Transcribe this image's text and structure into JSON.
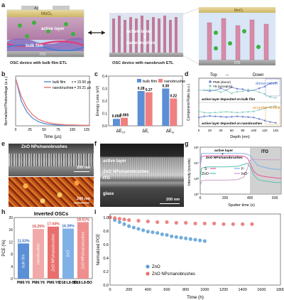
{
  "panel_labels": {
    "a": "a",
    "b": "b",
    "c": "c",
    "d": "d",
    "e": "e",
    "f": "f",
    "g": "g",
    "h": "h",
    "i": "i"
  },
  "panel_a": {
    "left_caption": "OSC device with bulk film ETL",
    "mid_caption": "OSC device with nanobrush ETL",
    "top_layer": "MoO₃",
    "electrode": "Ag",
    "active_layer": "active layer",
    "bulk_film": "bulk film",
    "ito": "ITO",
    "mid_label_1": "active layer",
    "mid_label_2": "+",
    "mid_label_3": "nanobrushes",
    "carrier_e": "e",
    "carrier_h": "h"
  },
  "panel_b": {
    "ylabel": "Normalized Photovoltage (a.u.)",
    "xlabel": "Time (μs)",
    "xticks": [
      "0",
      "25",
      "50",
      "75",
      "100",
      "125"
    ],
    "legend": [
      {
        "name": "bulk film",
        "tau": "τ = 15.50 μs",
        "color": "#5b8fd6"
      },
      {
        "name": "nanobrushes",
        "tau": "τ = 20.21 μs",
        "color": "#e87b74"
      }
    ]
  },
  "panel_c": {
    "ylabel": "Energy Loss (eV)",
    "yticks": [
      "0.0",
      "0.1",
      "0.2",
      "0.3",
      "0.4"
    ],
    "legend": [
      "bulk film",
      "nanobrushes"
    ],
    "categories": [
      "ΔE_CT",
      "ΔE_r",
      "ΔE_nr"
    ],
    "cat_main": [
      "ΔE",
      "ΔE",
      "ΔE"
    ],
    "cat_sub": [
      "CT",
      "r",
      "nr"
    ]
  },
  "panel_d": {
    "ylabel": "Component Ratio (a.u.)",
    "xlabel": "Depth (nm)",
    "xticks": [
      "0",
      "20",
      "40",
      "60",
      "80",
      "100",
      "120",
      "140"
    ],
    "top_label": "Top",
    "down_label": "Down",
    "arrow_text": "→",
    "legend": [
      "PM6 (donor)",
      "Y6 (acceptor)"
    ],
    "donor_rich": "donor-riched",
    "acceptor_rich": "acceptor-riched",
    "upper_caption": "active layer deposited on bulk film",
    "lower_caption": "active layer deposited on nanobrushes"
  },
  "panel_e": {
    "title": "ZnO NPs/nanobrushes",
    "scale_top": "200 nm",
    "scale_bottom": "200 nm"
  },
  "panel_f": {
    "active_layer": "active layer",
    "zno_layer": "ZnO NPs/nanobrushes",
    "ito": "ITO",
    "glass": "glass",
    "scale": "200 nm"
  },
  "panel_g": {
    "annotation_1": "active layer",
    "annotation_2": "+",
    "annotation_3": "ZnO NPs/nanobrushes",
    "ito": "ITO",
    "ylabel": "Intensity (counts)",
    "xlabel": "Sputter time (s)",
    "xticks": [
      "0",
      "200",
      "400",
      "600"
    ],
    "yticks": [
      "10⁰",
      "10²",
      "10⁴",
      "10⁶"
    ],
    "legend": [
      {
        "name": "S⁻",
        "color": "#e8559b"
      },
      {
        "name": "F⁻",
        "color": "#7fb0e6"
      },
      {
        "name": "ZnO⁻",
        "color": "#5bc0b0"
      },
      {
        "name": "InO⁻",
        "color": "#c8a0c8"
      }
    ]
  },
  "panel_h": {
    "title": "Inverted OSCs",
    "ylabel": "PCE (%)",
    "yticks": [
      "0",
      "4",
      "8",
      "12",
      "16",
      "20"
    ],
    "bars": [
      {
        "value_label": "11.53%",
        "inner": "bulk film",
        "category": "PM6:Y6",
        "color": "#5b8fd6"
      },
      {
        "value_label": "16.25%",
        "inner": "nanobrushes",
        "category": "PM6:Y6",
        "color": "#f2a9a9"
      },
      {
        "value_label": "17.04%",
        "inner": "ZnO NPs/nanobrushes",
        "category": "PM6:Y6",
        "color": "#e96f6f"
      },
      {
        "value_label": "16.39%",
        "inner": "ZnO",
        "category": "D18:L8-BO",
        "color": "#7fb0e6"
      },
      {
        "value_label": "18.51%",
        "inner": "ZnO NPs/nanobrushes",
        "category": "D18:L8-BO",
        "color": "#f08e8e"
      }
    ]
  },
  "panel_i": {
    "ylabel": "Normalized PCE",
    "xlabel": "Time (h)",
    "xticks": [
      "0",
      "200",
      "400",
      "600",
      "800",
      "1000",
      "1200",
      "1400",
      "1600",
      "1800"
    ],
    "yticks": [
      "0.0",
      "0.2",
      "0.4",
      "0.6",
      "0.8",
      "1.0"
    ],
    "legend": [
      {
        "name": "ZnO",
        "color": "#5b9fd6"
      },
      {
        "name": "ZnO NPs/nanobrushes",
        "color": "#e87070"
      }
    ]
  },
  "chart_data": [
    {
      "panel": "b",
      "type": "line",
      "xlabel": "Time (μs)",
      "ylabel": "Normalized Photovoltage (a.u.)",
      "xlim": [
        0,
        130
      ],
      "ylim": [
        0,
        1.05
      ],
      "series": [
        {
          "name": "bulk film",
          "tau_us": 15.5,
          "x": [
            0,
            10,
            20,
            30,
            40,
            50,
            60,
            70,
            80,
            90,
            100,
            110,
            120,
            130
          ],
          "y": [
            1.0,
            0.52,
            0.29,
            0.16,
            0.09,
            0.05,
            0.03,
            0.02,
            0.015,
            0.01,
            0.01,
            0.01,
            0.01,
            0.01
          ]
        },
        {
          "name": "nanobrushes",
          "tau_us": 20.21,
          "x": [
            0,
            10,
            20,
            30,
            40,
            50,
            60,
            70,
            80,
            90,
            100,
            110,
            120,
            130
          ],
          "y": [
            1.0,
            0.62,
            0.38,
            0.23,
            0.14,
            0.09,
            0.06,
            0.04,
            0.03,
            0.02,
            0.02,
            0.015,
            0.01,
            0.01
          ]
        }
      ]
    },
    {
      "panel": "c",
      "type": "bar",
      "categories": [
        "ΔE_CT",
        "ΔE_r",
        "ΔE_nr"
      ],
      "ylabel": "Energy Loss (eV)",
      "ylim": [
        0,
        0.4
      ],
      "series": [
        {
          "name": "bulk film",
          "values": [
            0.056,
            0.28,
            0.3
          ]
        },
        {
          "name": "nanobrushes",
          "values": [
            0.065,
            0.27,
            0.22
          ]
        }
      ],
      "labels": [
        "0.056",
        "0.065",
        "0.28",
        "0.27",
        "0.30",
        "0.22"
      ]
    },
    {
      "panel": "d",
      "type": "line",
      "xlabel": "Depth (nm)",
      "ylabel": "Component Ratio (a.u.)",
      "xlim": [
        0,
        150
      ],
      "series": [
        {
          "name": "PM6 (donor)",
          "group": "upper",
          "x": [
            0,
            10,
            20,
            30,
            40,
            50,
            60,
            70,
            80,
            90,
            100,
            110,
            120,
            130,
            140
          ],
          "y": [
            0.5,
            0.5,
            0.48,
            0.5,
            0.55,
            0.5,
            0.58,
            0.54,
            0.53,
            0.48,
            0.5,
            0.55,
            0.6,
            0.68,
            0.7
          ]
        },
        {
          "name": "Y6 (acceptor)",
          "group": "upper",
          "x": [
            0,
            10,
            20,
            30,
            40,
            50,
            60,
            70,
            80,
            90,
            100,
            110,
            120,
            130,
            140
          ],
          "y": [
            0.5,
            0.5,
            0.52,
            0.5,
            0.45,
            0.5,
            0.42,
            0.46,
            0.47,
            0.52,
            0.5,
            0.45,
            0.4,
            0.32,
            0.3
          ]
        },
        {
          "name": "PM6 (donor)",
          "group": "lower",
          "x": [
            0,
            10,
            20,
            30,
            40,
            50,
            60,
            70,
            80,
            90,
            100,
            110,
            120,
            130,
            140
          ],
          "y": [
            0.42,
            0.45,
            0.46,
            0.45,
            0.44,
            0.43,
            0.44,
            0.45,
            0.44,
            0.43,
            0.42,
            0.38,
            0.34,
            0.3,
            0.28
          ]
        },
        {
          "name": "Y6 (acceptor)",
          "group": "lower",
          "x": [
            0,
            10,
            20,
            30,
            40,
            50,
            60,
            70,
            80,
            90,
            100,
            110,
            120,
            130,
            140
          ],
          "y": [
            0.58,
            0.55,
            0.54,
            0.55,
            0.56,
            0.57,
            0.56,
            0.55,
            0.56,
            0.57,
            0.58,
            0.62,
            0.66,
            0.7,
            0.72
          ]
        }
      ]
    },
    {
      "panel": "g",
      "type": "line",
      "xlabel": "Sputter time (s)",
      "ylabel": "Intensity (counts)",
      "xlim": [
        0,
        650
      ],
      "yscale": "log",
      "ylim": [
        1,
        1000000
      ],
      "series": [
        {
          "name": "S⁻",
          "x": [
            0,
            10,
            50,
            100,
            200,
            300,
            350,
            380,
            400,
            430,
            460,
            500,
            550,
            600,
            650
          ],
          "y": [
            3000,
            60000,
            80000,
            80000,
            80000,
            80000,
            70000,
            40000,
            8000,
            800,
            300,
            200,
            150,
            120,
            100
          ]
        },
        {
          "name": "F⁻",
          "x": [
            0,
            10,
            50,
            100,
            200,
            300,
            350,
            380,
            400,
            430,
            460,
            500,
            550,
            600,
            650
          ],
          "y": [
            5000,
            150000,
            160000,
            160000,
            160000,
            160000,
            150000,
            120000,
            80000,
            20000,
            5000,
            3000,
            2000,
            1500,
            1500
          ]
        },
        {
          "name": "ZnO⁻",
          "x": [
            0,
            10,
            50,
            100,
            200,
            300,
            350,
            380,
            400,
            430,
            460,
            500,
            550,
            600,
            650
          ],
          "y": [
            100,
            2000,
            3000,
            3000,
            3000,
            3500,
            6000,
            9000,
            3000,
            300,
            80,
            50,
            40,
            30,
            30
          ]
        },
        {
          "name": "InO⁻",
          "x": [
            0,
            10,
            50,
            100,
            200,
            300,
            350,
            380,
            400,
            430,
            460,
            500,
            550,
            600,
            650
          ],
          "y": [
            10,
            50,
            60,
            60,
            60,
            70,
            150,
            2000,
            20000,
            30000,
            25000,
            25000,
            24000,
            24000,
            24000
          ]
        }
      ]
    },
    {
      "panel": "h",
      "type": "bar",
      "title": "Inverted OSCs",
      "ylabel": "PCE (%)",
      "ylim": [
        0,
        20
      ],
      "categories": [
        "PM6:Y6",
        "PM6:Y6",
        "PM6:Y6",
        "D18:L8-BO",
        "D18:L8-BO"
      ],
      "values": [
        11.53,
        16.25,
        17.04,
        16.39,
        18.51
      ]
    },
    {
      "panel": "i",
      "type": "scatter",
      "xlabel": "Time (h)",
      "ylabel": "Normalized PCE",
      "xlim": [
        0,
        1800
      ],
      "ylim": [
        0,
        1.05
      ],
      "series": [
        {
          "name": "ZnO",
          "x": [
            0,
            50,
            100,
            150,
            200,
            250,
            300,
            350,
            400,
            450,
            500,
            550,
            600,
            650,
            700,
            750,
            800,
            850,
            900,
            950,
            1000
          ],
          "y": [
            1.0,
            0.96,
            0.93,
            0.9,
            0.87,
            0.85,
            0.83,
            0.81,
            0.79,
            0.78,
            0.77,
            0.75,
            0.74,
            0.72,
            0.71,
            0.7,
            0.69,
            0.68,
            0.67,
            0.66,
            0.65
          ]
        },
        {
          "name": "ZnO NPs/nanobrushes",
          "x": [
            0,
            50,
            100,
            150,
            200,
            300,
            400,
            500,
            600,
            700,
            800,
            900,
            1000,
            1100,
            1200,
            1300,
            1400,
            1500
          ],
          "y": [
            1.0,
            0.99,
            0.98,
            0.97,
            0.96,
            0.95,
            0.94,
            0.93,
            0.93,
            0.92,
            0.92,
            0.91,
            0.91,
            0.91,
            0.9,
            0.9,
            0.9,
            0.9
          ]
        }
      ]
    }
  ]
}
